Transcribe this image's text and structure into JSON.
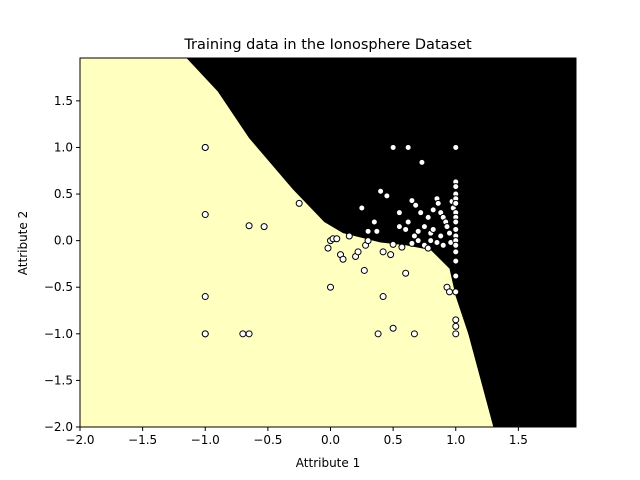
{
  "chart_data": {
    "type": "scatter",
    "title": "Training data in the Ionosphere Dataset",
    "xlabel": "Attribute 1",
    "ylabel": "Attribute 2",
    "xlim": [
      -2.0,
      1.96
    ],
    "ylim": [
      -2.0,
      1.96
    ],
    "x_ticks": [
      "−2.0",
      "−1.5",
      "−1.0",
      "−0.5",
      "0.0",
      "0.5",
      "1.0",
      "1.5"
    ],
    "x_tick_values": [
      -2.0,
      -1.5,
      -1.0,
      -0.5,
      0.0,
      0.5,
      1.0,
      1.5
    ],
    "y_ticks": [
      "−2.0",
      "−1.5",
      "−1.0",
      "−0.5",
      "0.0",
      "0.5",
      "1.0",
      "1.5"
    ],
    "y_tick_values": [
      -2.0,
      -1.5,
      -1.0,
      -0.5,
      0.0,
      0.5,
      1.0,
      1.5
    ],
    "grid": false,
    "colors": {
      "region_light": "#ffffbf",
      "region_dark": "#000000",
      "point_fill": "#ffffff",
      "point_edge": "#000000"
    },
    "decision_boundary": [
      [
        -1.15,
        1.96
      ],
      [
        -0.9,
        1.6
      ],
      [
        -0.65,
        1.1
      ],
      [
        -0.3,
        0.55
      ],
      [
        -0.05,
        0.2
      ],
      [
        0.1,
        0.08
      ],
      [
        0.4,
        -0.02
      ],
      [
        0.6,
        -0.05
      ],
      [
        0.8,
        -0.1
      ],
      [
        0.95,
        -0.3
      ],
      [
        1.0,
        -0.6
      ],
      [
        1.1,
        -1.0
      ],
      [
        1.2,
        -1.5
      ],
      [
        1.3,
        -2.0
      ]
    ],
    "points": [
      [
        -1.0,
        1.0
      ],
      [
        -1.0,
        1.0
      ],
      [
        -1.0,
        0.28
      ],
      [
        -1.0,
        -0.6
      ],
      [
        -1.0,
        -1.0
      ],
      [
        -1.0,
        -1.0
      ],
      [
        -0.7,
        -1.0
      ],
      [
        -0.65,
        -1.0
      ],
      [
        -0.65,
        0.16
      ],
      [
        -0.53,
        0.15
      ],
      [
        -0.25,
        0.4
      ],
      [
        0.0,
        0.0
      ],
      [
        0.02,
        0.02
      ],
      [
        0.05,
        0.02
      ],
      [
        -0.02,
        -0.08
      ],
      [
        0.08,
        -0.15
      ],
      [
        0.1,
        -0.2
      ],
      [
        0.0,
        -0.5
      ],
      [
        0.15,
        0.05
      ],
      [
        0.2,
        -0.17
      ],
      [
        0.22,
        -0.12
      ],
      [
        0.28,
        -0.05
      ],
      [
        0.3,
        0.0
      ],
      [
        0.3,
        0.1
      ],
      [
        0.35,
        0.2
      ],
      [
        0.37,
        0.1
      ],
      [
        0.25,
        0.35
      ],
      [
        0.4,
        0.53
      ],
      [
        0.42,
        -0.12
      ],
      [
        0.45,
        0.48
      ],
      [
        0.48,
        -0.15
      ],
      [
        0.5,
        1.0
      ],
      [
        0.5,
        -0.04
      ],
      [
        0.55,
        0.15
      ],
      [
        0.57,
        -0.07
      ],
      [
        0.6,
        0.12
      ],
      [
        0.6,
        -0.35
      ],
      [
        0.62,
        0.2
      ],
      [
        0.62,
        1.0
      ],
      [
        0.65,
        0.43
      ],
      [
        0.68,
        0.38
      ],
      [
        0.7,
        0.0
      ],
      [
        0.73,
        0.84
      ],
      [
        0.75,
        -0.05
      ],
      [
        0.78,
        0.25
      ],
      [
        0.8,
        0.08
      ],
      [
        0.82,
        0.33
      ],
      [
        0.85,
        0.45
      ],
      [
        0.86,
        0.4
      ],
      [
        0.88,
        0.3
      ],
      [
        0.9,
        0.25
      ],
      [
        0.92,
        0.2
      ],
      [
        0.93,
        0.15
      ],
      [
        0.95,
        0.08
      ],
      [
        0.96,
        -0.02
      ],
      [
        0.97,
        0.42
      ],
      [
        0.98,
        0.35
      ],
      [
        1.0,
        1.0
      ],
      [
        1.0,
        0.63
      ],
      [
        1.0,
        0.58
      ],
      [
        1.0,
        0.5
      ],
      [
        1.0,
        0.45
      ],
      [
        1.0,
        0.4
      ],
      [
        1.0,
        0.3
      ],
      [
        1.0,
        0.25
      ],
      [
        1.0,
        0.2
      ],
      [
        1.0,
        0.12
      ],
      [
        1.0,
        0.05
      ],
      [
        1.0,
        0.0
      ],
      [
        1.0,
        -0.05
      ],
      [
        1.0,
        -0.12
      ],
      [
        1.0,
        -0.22
      ],
      [
        1.0,
        -0.38
      ],
      [
        1.0,
        -0.55
      ],
      [
        1.0,
        -0.85
      ],
      [
        1.0,
        -0.92
      ],
      [
        1.0,
        -1.0
      ],
      [
        0.38,
        -1.0
      ],
      [
        0.42,
        -0.6
      ],
      [
        0.5,
        -0.94
      ],
      [
        0.67,
        -1.0
      ],
      [
        0.27,
        -0.32
      ],
      [
        0.93,
        -0.5
      ],
      [
        0.95,
        -0.55
      ],
      [
        0.8,
        0.0
      ],
      [
        0.85,
        -0.02
      ],
      [
        0.7,
        0.1
      ],
      [
        0.75,
        0.15
      ],
      [
        0.65,
        -0.03
      ],
      [
        0.55,
        0.3
      ],
      [
        0.88,
        0.05
      ],
      [
        0.9,
        -0.05
      ],
      [
        0.82,
        0.12
      ],
      [
        0.78,
        -0.08
      ],
      [
        0.72,
        0.3
      ],
      [
        0.67,
        0.05
      ]
    ]
  }
}
